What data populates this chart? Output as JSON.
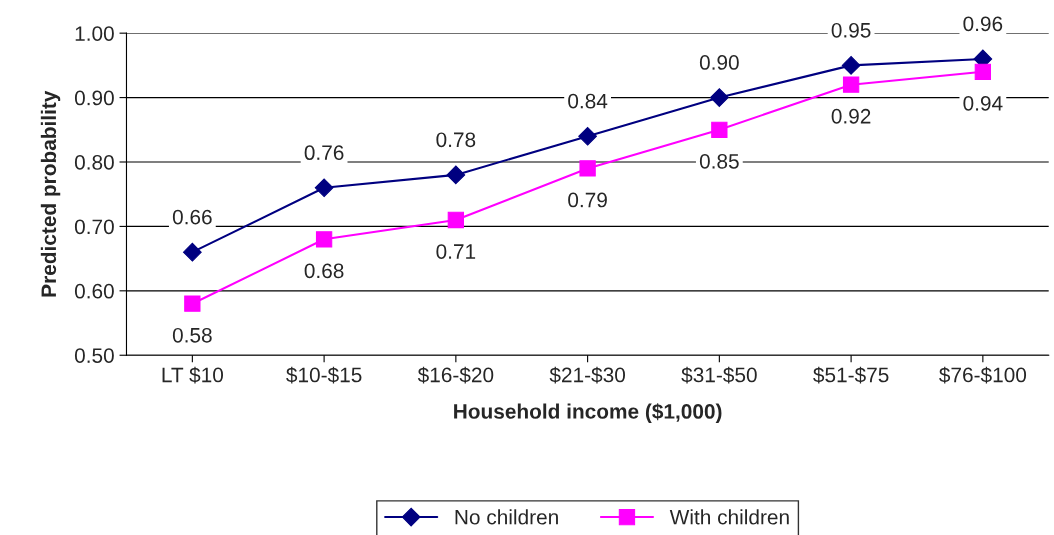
{
  "chart_data": {
    "type": "line",
    "xlabel": "Household income ($1,000)",
    "ylabel": "Predicted probability",
    "categories": [
      "LT $10",
      "$10-$15",
      "$16-$20",
      "$21-$30",
      "$31-$50",
      "$51-$75",
      "$76-$100"
    ],
    "series": [
      {
        "name": "No children",
        "color": "#000080",
        "marker": "diamond",
        "values": [
          0.66,
          0.76,
          0.78,
          0.84,
          0.9,
          0.95,
          0.96
        ],
        "value_labels": [
          "0.66",
          "0.76",
          "0.78",
          "0.84",
          "0.90",
          "0.95",
          "0.96"
        ]
      },
      {
        "name": "With children",
        "color": "#ff00ff",
        "marker": "square",
        "values": [
          0.58,
          0.68,
          0.71,
          0.79,
          0.85,
          0.92,
          0.94
        ],
        "value_labels": [
          "0.58",
          "0.68",
          "0.71",
          "0.79",
          "0.85",
          "0.92",
          "0.94"
        ]
      }
    ],
    "ylim": [
      0.5,
      1.0
    ],
    "yticks": [
      {
        "value": 0.5,
        "label": "0.50"
      },
      {
        "value": 0.6,
        "label": "0.60"
      },
      {
        "value": 0.7,
        "label": "0.70"
      },
      {
        "value": 0.8,
        "label": "0.80"
      },
      {
        "value": 0.9,
        "label": "0.90"
      },
      {
        "value": 1.0,
        "label": "1.00"
      }
    ],
    "grid": "y",
    "legend": "bottom",
    "line_style": "solid"
  }
}
